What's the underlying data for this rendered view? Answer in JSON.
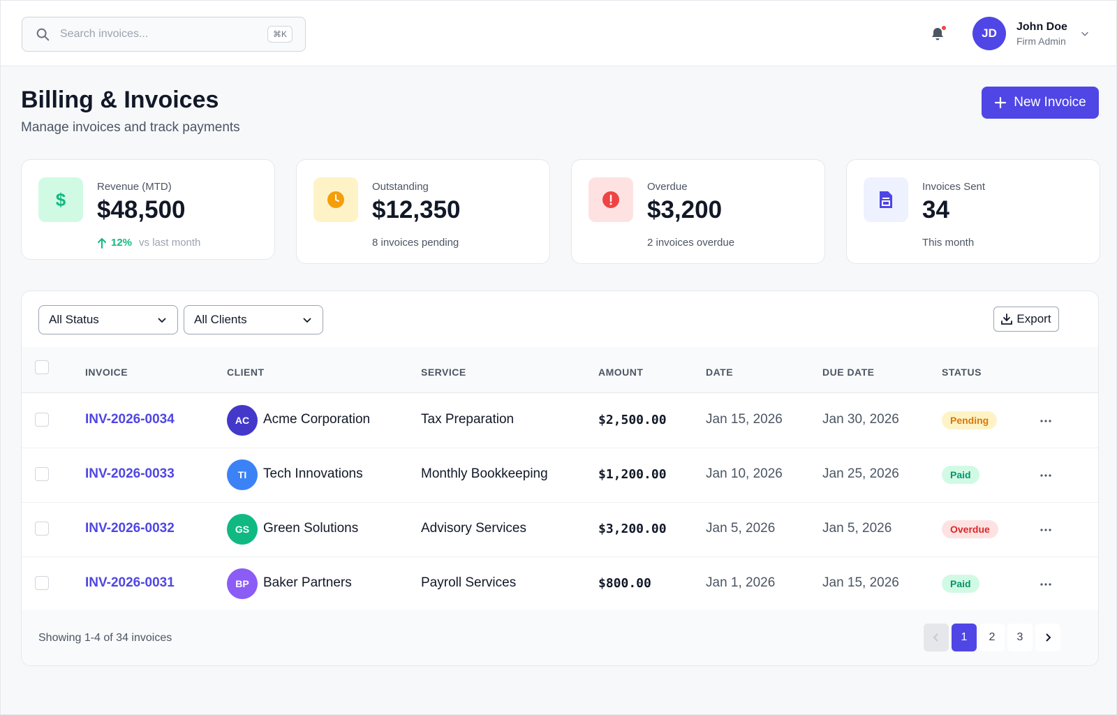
{
  "search": {
    "placeholder": "Search invoices...",
    "shortcut": "⌘K"
  },
  "user": {
    "initials": "JD",
    "name": "John Doe",
    "role": "Firm Admin"
  },
  "page": {
    "title": "Billing & Invoices",
    "subtitle": "Manage invoices and track payments",
    "new_button": "New Invoice"
  },
  "stats": [
    {
      "label": "Revenue (MTD)",
      "value": "$48,500",
      "trend_pct": "12%",
      "trend_text": "vs last month",
      "icon": "dollar-icon",
      "color": "#10b981",
      "bg": "#d1fae5"
    },
    {
      "label": "Outstanding",
      "value": "$12,350",
      "foot": "8 invoices pending",
      "icon": "clock-icon",
      "color": "#f59e0b",
      "bg": "#fef3c7"
    },
    {
      "label": "Overdue",
      "value": "$3,200",
      "foot": "2 invoices overdue",
      "icon": "alert-icon",
      "color": "#ef4444",
      "bg": "#fee2e2"
    },
    {
      "label": "Invoices Sent",
      "value": "34",
      "foot": "This month",
      "icon": "document-icon",
      "color": "#4f46e5",
      "bg": "#eef2ff"
    }
  ],
  "filters": {
    "status": "All Status",
    "clients": "All Clients",
    "export": "Export"
  },
  "table": {
    "headers": [
      "INVOICE",
      "CLIENT",
      "SERVICE",
      "AMOUNT",
      "DATE",
      "DUE DATE",
      "STATUS"
    ],
    "rows": [
      {
        "invoice": "INV-2026-0034",
        "initials": "AC",
        "avatar_color": "#4338ca",
        "client": "Acme Corporation",
        "service": "Tax Preparation",
        "amount": "$2,500.00",
        "date": "Jan 15, 2026",
        "due": "Jan 30, 2026",
        "status": "Pending"
      },
      {
        "invoice": "INV-2026-0033",
        "initials": "TI",
        "avatar_color": "#3b82f6",
        "client": "Tech Innovations",
        "service": "Monthly Bookkeeping",
        "amount": "$1,200.00",
        "date": "Jan 10, 2026",
        "due": "Jan 25, 2026",
        "status": "Paid"
      },
      {
        "invoice": "INV-2026-0032",
        "initials": "GS",
        "avatar_color": "#10b981",
        "client": "Green Solutions",
        "service": "Advisory Services",
        "amount": "$3,200.00",
        "date": "Jan 5, 2026",
        "due": "Jan 5, 2026",
        "status": "Overdue"
      },
      {
        "invoice": "INV-2026-0031",
        "initials": "BP",
        "avatar_color": "#8b5cf6",
        "client": "Baker Partners",
        "service": "Payroll Services",
        "amount": "$800.00",
        "date": "Jan 1, 2026",
        "due": "Jan 15, 2026",
        "status": "Paid"
      }
    ]
  },
  "status_colors": {
    "Pending": {
      "bg": "#fef3c7",
      "fg": "#d97706"
    },
    "Paid": {
      "bg": "#d1fae5",
      "fg": "#059669"
    },
    "Overdue": {
      "bg": "#fee2e2",
      "fg": "#dc2626"
    }
  },
  "footer": {
    "showing": "Showing 1-4 of 34 invoices",
    "pages": [
      "1",
      "2",
      "3"
    ],
    "current_page": "1"
  }
}
